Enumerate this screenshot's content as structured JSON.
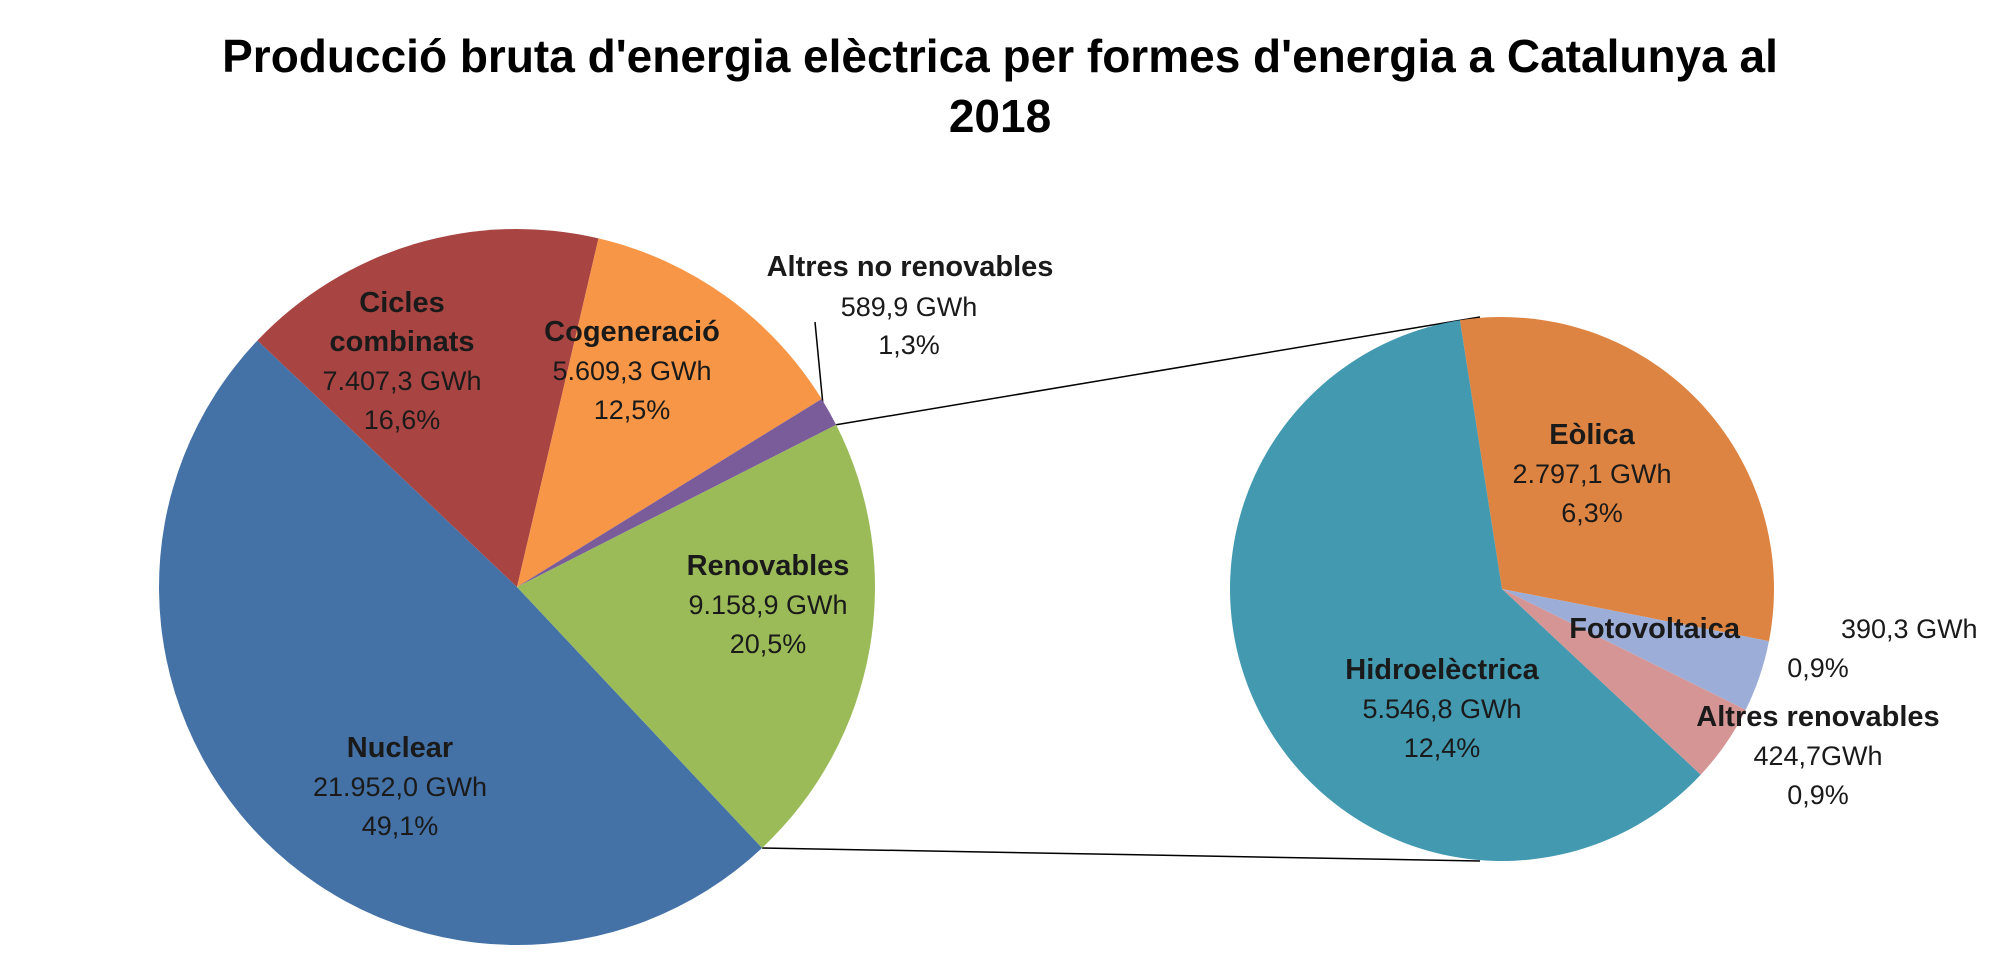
{
  "chart_data": {
    "type": "pie",
    "title_line1": "Producció bruta d'energia elèctrica per formes d'energia a Catalunya al",
    "title_line2": "2018",
    "main_pie": {
      "slices": [
        {
          "name": "Nuclear",
          "value": 21952.0,
          "value_label": "21.952,0 GWh",
          "percent_label": "49,1%",
          "color": "#4472A6"
        },
        {
          "name": "Cicles combinats",
          "name_lines": [
            "Cicles",
            "combinats"
          ],
          "value": 7407.3,
          "value_label": "7.407,3 GWh",
          "percent_label": "16,6%",
          "color": "#A84442"
        },
        {
          "name": "Cogeneració",
          "value": 5609.3,
          "value_label": "5.609,3 GWh",
          "percent_label": "12,5%",
          "color": "#F79646"
        },
        {
          "name": "Altres no renovables",
          "value": 589.9,
          "value_label": "589,9 GWh",
          "percent_label": "1,3%",
          "color": "#7A5C9A"
        },
        {
          "name": "Renovables",
          "value": 9158.9,
          "value_label": "9.158,9  GWh",
          "percent_label": "20,5%",
          "color": "#9BBB59"
        }
      ]
    },
    "breakdown_pie": {
      "of": "Renovables",
      "slices": [
        {
          "name": "Eòlica",
          "value": 2797.1,
          "value_label": "2.797,1 GWh",
          "percent_label": "6,3%",
          "color": "#DE8442"
        },
        {
          "name": "Fotovoltaica",
          "value": 390.3,
          "value_label": "390,3 GWh",
          "percent_label": "0,9%",
          "color": "#9CAED8"
        },
        {
          "name": "Altres renovables",
          "value": 424.7,
          "value_label": "424,7GWh",
          "percent_label": "0,9%",
          "color": "#D69595"
        },
        {
          "name": "Hidroelèctrica",
          "value": 5546.8,
          "value_label": "5.546,8  GWh",
          "percent_label": "12,4%",
          "color": "#4299B0"
        }
      ]
    },
    "legend": "none"
  }
}
